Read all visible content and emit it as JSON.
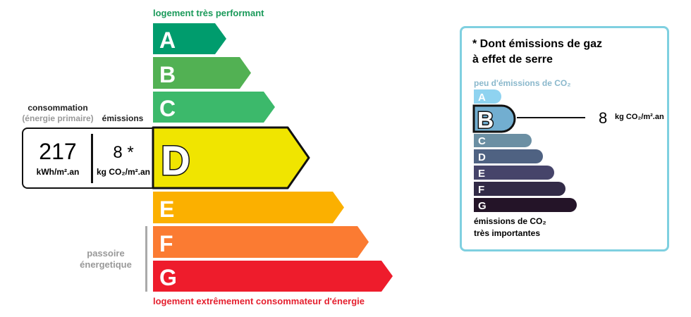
{
  "energy": {
    "top_label": "logement très performant",
    "bottom_label": "logement extrêmement consommateur d'énergie",
    "passoire_label_1": "passoire",
    "passoire_label_2": "énergetique",
    "consumption_label": "consommation",
    "consumption_sublabel": "(énergie primaire)",
    "emissions_label": "émissions",
    "consumption_value": "217",
    "consumption_unit": "kWh/m².an",
    "emissions_value": "8 *",
    "emissions_unit": "kg CO₂/m².an",
    "selected_class": "D",
    "classes": [
      {
        "letter": "A",
        "color": "#009c6d"
      },
      {
        "letter": "B",
        "color": "#52b153"
      },
      {
        "letter": "C",
        "color": "#3cb96b"
      },
      {
        "letter": "D",
        "color": "#f0e500"
      },
      {
        "letter": "E",
        "color": "#fbb000"
      },
      {
        "letter": "F",
        "color": "#fb7b32"
      },
      {
        "letter": "G",
        "color": "#ee1c2c"
      }
    ]
  },
  "ges": {
    "title_1": "* Dont émissions de gaz",
    "title_2": "à effet de serre",
    "top_label": "peu d'émissions de CO₂",
    "bottom_label_1": "émissions de CO₂",
    "bottom_label_2": "très importantes",
    "value": "8",
    "unit": "kg CO₂/m².an",
    "selected_class": "B",
    "border_color": "#7fd0e0",
    "classes": [
      {
        "letter": "A",
        "color": "#8fd3f0"
      },
      {
        "letter": "B",
        "color": "#72aed0"
      },
      {
        "letter": "C",
        "color": "#6b8fa3"
      },
      {
        "letter": "D",
        "color": "#4f6282"
      },
      {
        "letter": "E",
        "color": "#46446a"
      },
      {
        "letter": "F",
        "color": "#322b47"
      },
      {
        "letter": "G",
        "color": "#241428"
      }
    ]
  }
}
